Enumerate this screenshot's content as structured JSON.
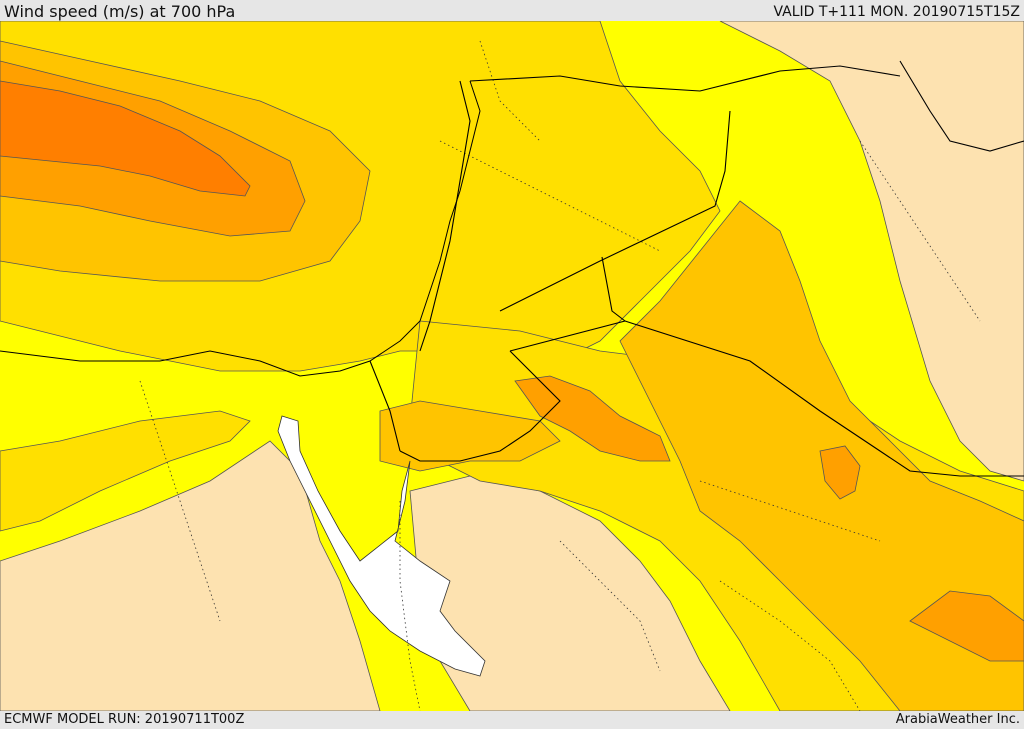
{
  "header": {
    "title": "Wind speed (m/s) at 700 hPa",
    "valid": "VALID T+111 MON. 20190715T15Z"
  },
  "footer": {
    "model_run": "ECMWF MODEL RUN: 20190711T00Z",
    "credit": "ArabiaWeather Inc."
  },
  "colors": {
    "band_low": "#fde2b0",
    "band_1": "#ffff00",
    "band_2": "#ffe000",
    "band_3": "#ffc400",
    "band_4": "#ffa000",
    "band_5": "#ff7f00",
    "water_red_sea": "#ffffff",
    "contour": "#555555",
    "border": "#000000"
  }
}
